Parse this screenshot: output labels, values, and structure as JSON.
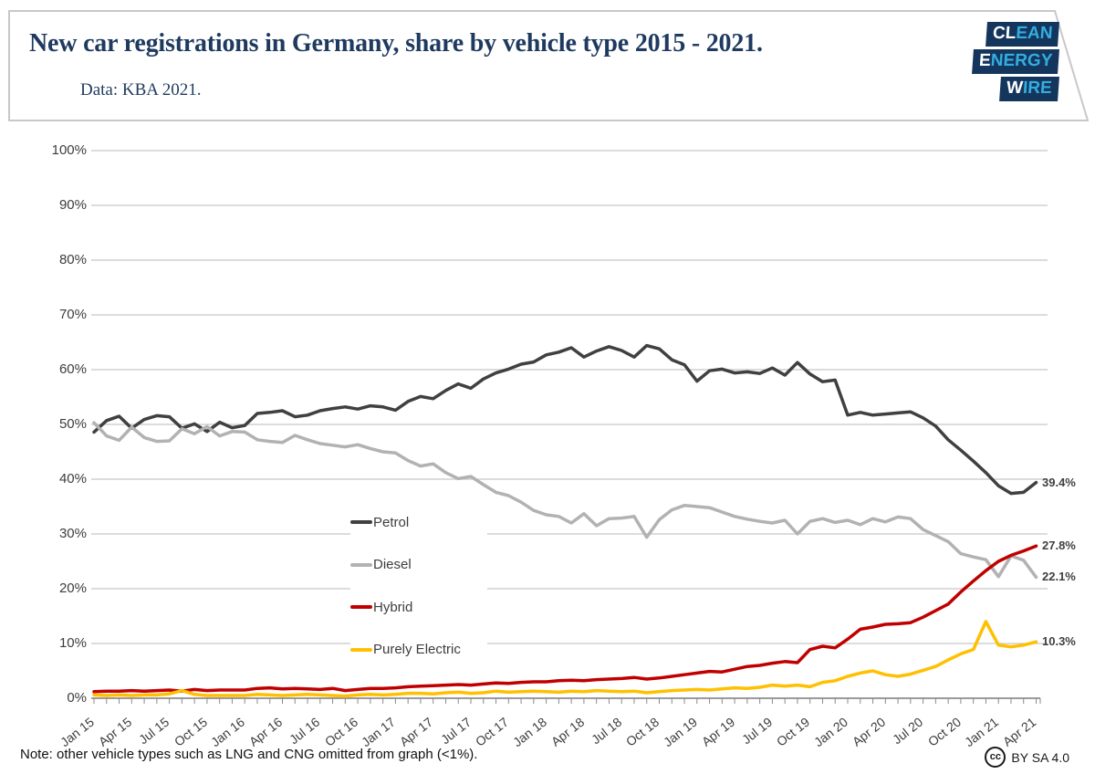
{
  "header": {
    "title": "New car registrations in Germany, share by vehicle type 2015 - 2021.",
    "subtitle": "Data: KBA 2021.",
    "logo_lines": [
      {
        "strong": "CL",
        "rest": "EAN"
      },
      {
        "strong": "E",
        "rest": "NERGY"
      },
      {
        "strong": "W",
        "rest": "IRE"
      }
    ]
  },
  "footer": {
    "note": "Note: other vehicle types such as LNG and CNG omitted from graph (<1%).",
    "cc_label": "cc",
    "license": "BY SA 4.0"
  },
  "colors": {
    "title_navy": "#1e3a5f",
    "logo_bg": "#14365d",
    "logo_accent": "#33ade0",
    "petrol": "#404040",
    "diesel": "#b2b2b2",
    "hybrid": "#c00000",
    "electric": "#ffc000",
    "gridline": "#c7c7c7",
    "axis": "#9b9b9b"
  },
  "chart_data": {
    "type": "line",
    "x_unit": "month",
    "x_start": "Jan 2015",
    "x_end": "Apr 2021",
    "grid": "horizontal",
    "ylim": [
      0,
      100
    ],
    "y_tick_labels": [
      "0%",
      "10%",
      "20%",
      "30%",
      "40%",
      "50%",
      "60%",
      "70%",
      "80%",
      "90%",
      "100%"
    ],
    "x_tick_labels": [
      "Jan 15",
      "Apr 15",
      "Jul 15",
      "Oct 15",
      "Jan 16",
      "Apr 16",
      "Jul 16",
      "Oct 16",
      "Jan 17",
      "Apr 17",
      "Jul 17",
      "Oct 17",
      "Jan 18",
      "Apr 18",
      "Jul 18",
      "Oct 18",
      "Jan 19",
      "Apr 19",
      "Jul 19",
      "Oct 19",
      "Jan 20",
      "Apr 20",
      "Jul 20",
      "Oct 20",
      "Jan 21",
      "Apr 21"
    ],
    "legend_position": "center-left overlay",
    "legend_items": [
      {
        "name": "Petrol",
        "color": "#404040"
      },
      {
        "name": "Diesel",
        "color": "#b2b2b2"
      },
      {
        "name": "Hybrid",
        "color": "#c00000"
      },
      {
        "name": "Purely Electric",
        "color": "#ffc000"
      }
    ],
    "end_labels": [
      {
        "series": "Petrol",
        "text": "39.4%",
        "value": 39.4
      },
      {
        "series": "Hybrid",
        "text": "27.8%",
        "value": 27.8
      },
      {
        "series": "Diesel",
        "text": "22.1%",
        "value": 22.1
      },
      {
        "series": "Purely Electric",
        "text": "10.3%",
        "value": 10.3
      }
    ],
    "series": [
      {
        "name": "Petrol",
        "color": "#404040",
        "values": [
          48.6,
          50.7,
          51.5,
          49.3,
          50.9,
          51.6,
          51.4,
          49.3,
          50.1,
          48.7,
          50.4,
          49.4,
          49.8,
          52.0,
          52.2,
          52.5,
          51.4,
          51.7,
          52.5,
          52.9,
          53.2,
          52.8,
          53.4,
          53.2,
          52.6,
          54.2,
          55.1,
          54.7,
          56.2,
          57.4,
          56.6,
          58.3,
          59.4,
          60.1,
          61.0,
          61.4,
          62.7,
          63.2,
          64.0,
          62.3,
          63.4,
          64.2,
          63.5,
          62.3,
          64.4,
          63.8,
          61.8,
          60.9,
          57.9,
          59.8,
          60.1,
          59.4,
          59.6,
          59.3,
          60.3,
          59.0,
          61.3,
          59.2,
          57.8,
          58.1,
          51.7,
          52.2,
          51.7,
          51.9,
          52.1,
          52.3,
          51.2,
          49.7,
          47.2,
          45.3,
          43.3,
          41.2,
          38.8,
          37.4,
          37.6,
          39.4
        ]
      },
      {
        "name": "Diesel",
        "color": "#b2b2b2",
        "values": [
          50.3,
          47.9,
          47.1,
          49.5,
          47.6,
          46.9,
          47.0,
          49.2,
          48.3,
          49.6,
          47.9,
          48.7,
          48.6,
          47.2,
          46.9,
          46.7,
          48.0,
          47.2,
          46.5,
          46.2,
          45.9,
          46.3,
          45.6,
          45.0,
          44.8,
          43.4,
          42.4,
          42.8,
          41.2,
          40.1,
          40.5,
          39.0,
          37.6,
          37.0,
          35.8,
          34.3,
          33.5,
          33.2,
          32.0,
          33.7,
          31.5,
          32.8,
          32.9,
          33.2,
          29.4,
          32.6,
          34.4,
          35.2,
          35.0,
          34.8,
          34.0,
          33.2,
          32.7,
          32.3,
          32.0,
          32.5,
          30.0,
          32.3,
          32.8,
          32.1,
          32.5,
          31.7,
          32.8,
          32.2,
          33.1,
          32.8,
          30.8,
          29.7,
          28.6,
          26.4,
          25.8,
          25.3,
          22.2,
          26.0,
          25.2,
          22.1
        ]
      },
      {
        "name": "Hybrid",
        "color": "#c00000",
        "values": [
          1.2,
          1.3,
          1.3,
          1.4,
          1.3,
          1.4,
          1.5,
          1.3,
          1.6,
          1.4,
          1.5,
          1.5,
          1.5,
          1.8,
          1.9,
          1.7,
          1.8,
          1.7,
          1.6,
          1.8,
          1.4,
          1.6,
          1.8,
          1.8,
          1.9,
          2.1,
          2.2,
          2.3,
          2.4,
          2.5,
          2.4,
          2.6,
          2.8,
          2.7,
          2.9,
          3.0,
          3.0,
          3.2,
          3.3,
          3.2,
          3.4,
          3.5,
          3.6,
          3.8,
          3.5,
          3.7,
          4.0,
          4.3,
          4.6,
          4.9,
          4.8,
          5.3,
          5.8,
          6.0,
          6.4,
          6.7,
          6.5,
          8.9,
          9.5,
          9.2,
          10.8,
          12.6,
          13.0,
          13.5,
          13.6,
          13.8,
          14.8,
          16.0,
          17.2,
          19.4,
          21.4,
          23.3,
          25.0,
          26.1,
          26.9,
          27.8
        ]
      },
      {
        "name": "Purely Electric",
        "color": "#ffc000",
        "values": [
          0.6,
          0.5,
          0.6,
          0.5,
          0.6,
          0.6,
          0.8,
          1.4,
          0.7,
          0.5,
          0.5,
          0.5,
          0.5,
          0.7,
          0.6,
          0.5,
          0.6,
          0.7,
          0.6,
          0.5,
          0.4,
          0.6,
          0.7,
          0.6,
          0.7,
          0.9,
          0.9,
          0.8,
          1.0,
          1.1,
          0.9,
          1.0,
          1.3,
          1.1,
          1.2,
          1.3,
          1.2,
          1.1,
          1.3,
          1.2,
          1.4,
          1.3,
          1.2,
          1.3,
          1.0,
          1.2,
          1.4,
          1.5,
          1.6,
          1.5,
          1.7,
          1.9,
          1.8,
          2.0,
          2.4,
          2.2,
          2.4,
          2.1,
          2.9,
          3.2,
          4.0,
          4.6,
          5.0,
          4.3,
          4.0,
          4.4,
          5.1,
          5.8,
          7.0,
          8.1,
          8.9,
          14.0,
          9.7,
          9.4,
          9.7,
          10.3
        ]
      }
    ]
  }
}
